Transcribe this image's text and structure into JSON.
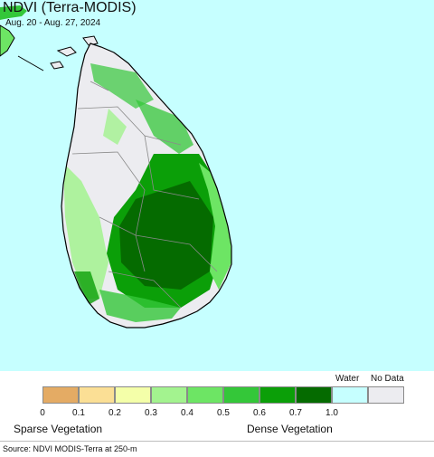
{
  "header": {
    "title": "NDVI (Terra-MODIS)",
    "date_range": "Aug. 20 - Aug. 27, 2024"
  },
  "colors": {
    "water": "#c6ffff",
    "no_data": "#ececf0",
    "coast": "#000000",
    "boundary": "#8a8a8a"
  },
  "legend": {
    "water_label": "Water",
    "no_data_label": "No Data",
    "bins": [
      {
        "color": "#e4ab64",
        "label": "0"
      },
      {
        "color": "#fbdf95",
        "label": "0.1"
      },
      {
        "color": "#f4ffa9",
        "label": "0.2"
      },
      {
        "color": "#a3f38f",
        "label": "0.3"
      },
      {
        "color": "#6de564",
        "label": "0.4"
      },
      {
        "color": "#34c739",
        "label": "0.5"
      },
      {
        "color": "#0b9f08",
        "label": "0.6"
      },
      {
        "color": "#056b00",
        "label": "0.7"
      },
      {
        "color": "#c6ffff",
        "label": "1.0"
      },
      {
        "color": "#ececf0",
        "label": ""
      }
    ],
    "sparse_label": "Sparse Vegetation",
    "dense_label": "Dense Vegetation"
  },
  "footer": {
    "source": "Source: NDVI MODIS-Terra at 250-m"
  }
}
